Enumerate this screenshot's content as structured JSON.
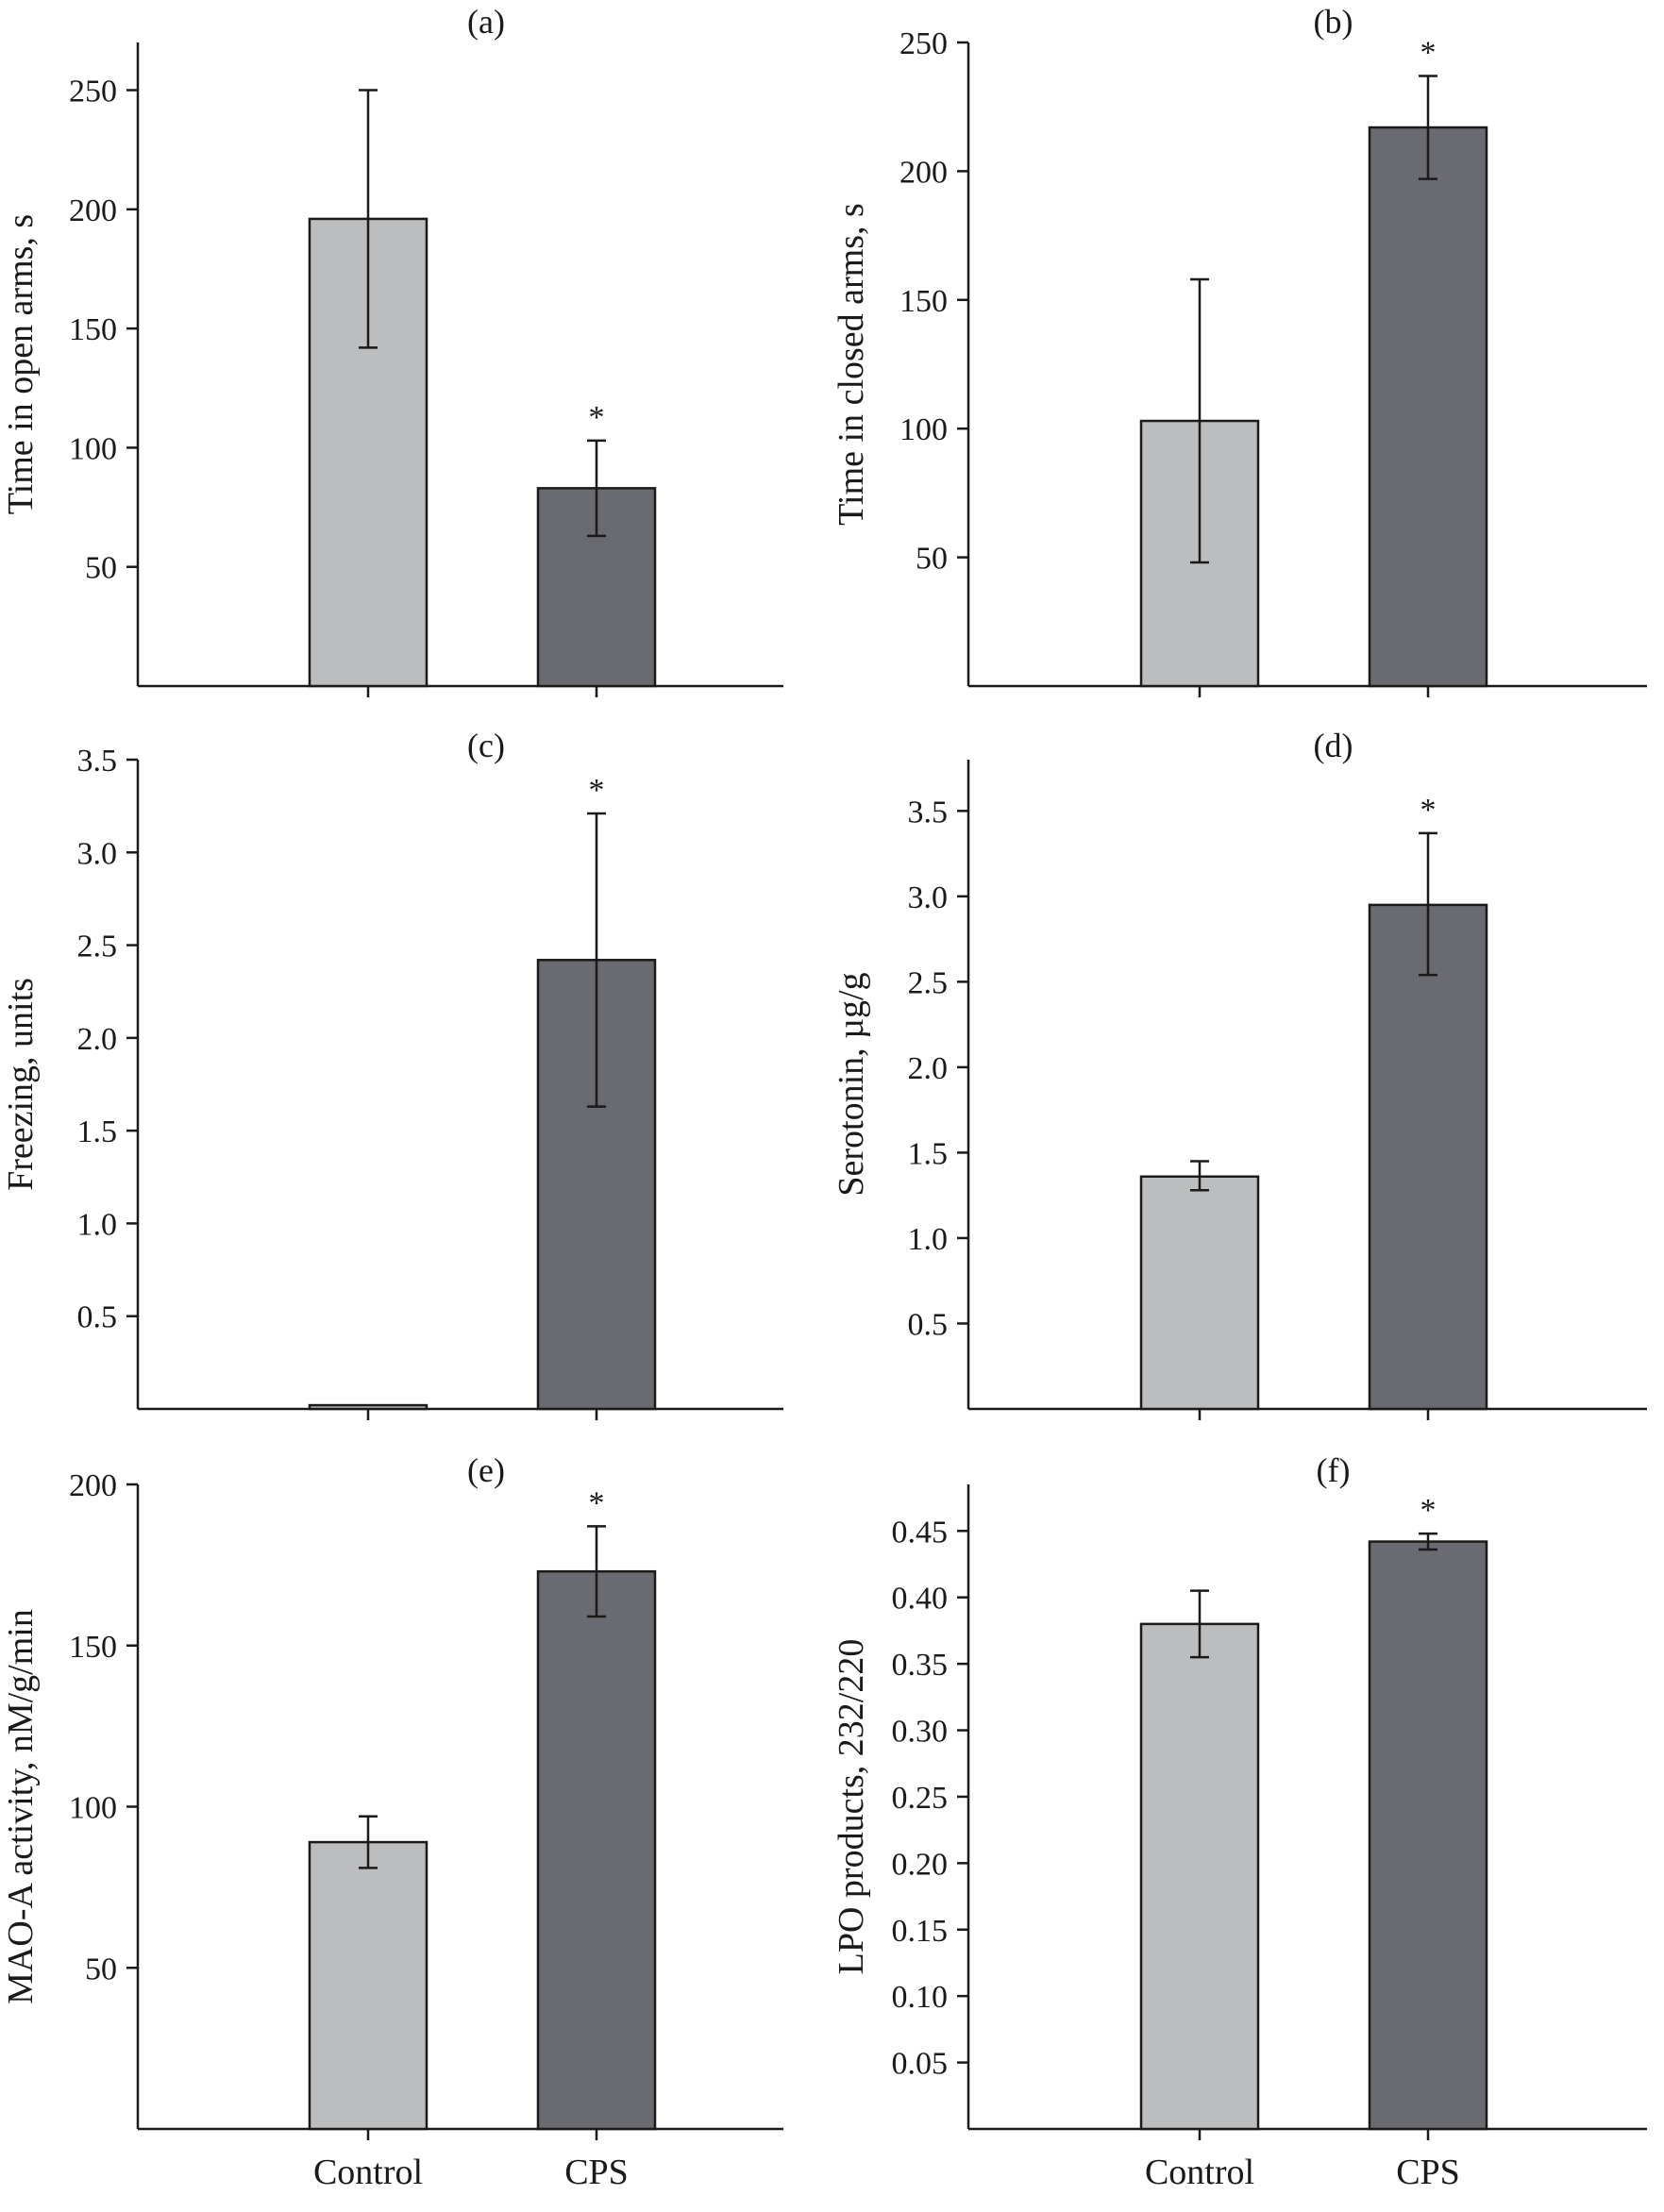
{
  "colors": {
    "control": "#bcbdbf",
    "cps": "#6a6b70",
    "ink": "#1a1a1a"
  },
  "chart_data": [
    {
      "type": "bar",
      "panel_label": "(a)",
      "ylabel": "Time in open arms, s",
      "ylim": [
        0,
        270
      ],
      "yticks": [
        50,
        100,
        150,
        200,
        250
      ],
      "ytick_labels": [
        "50",
        "100",
        "150",
        "200",
        "250"
      ],
      "categories": [
        "Control",
        "CPS"
      ],
      "values": [
        196,
        83
      ],
      "error_low": [
        142,
        63
      ],
      "error_high": [
        250,
        103
      ],
      "significance": [
        "",
        "*"
      ],
      "show_xtick_labels": false
    },
    {
      "type": "bar",
      "panel_label": "(b)",
      "ylabel": "Time in closed arms, s",
      "ylim": [
        0,
        250
      ],
      "yticks": [
        50,
        100,
        150,
        200,
        250
      ],
      "ytick_labels": [
        "50",
        "100",
        "150",
        "200",
        "250"
      ],
      "categories": [
        "Control",
        "CPS"
      ],
      "values": [
        103,
        217
      ],
      "error_low": [
        48,
        197
      ],
      "error_high": [
        158,
        237
      ],
      "significance": [
        "",
        "*"
      ],
      "show_xtick_labels": false
    },
    {
      "type": "bar",
      "panel_label": "(c)",
      "ylabel": "Freezing, units",
      "ylim": [
        0,
        3.5
      ],
      "yticks": [
        0.5,
        1.0,
        1.5,
        2.0,
        2.5,
        3.0,
        3.5
      ],
      "ytick_labels": [
        "0.5",
        "1.0",
        "1.5",
        "2.0",
        "2.5",
        "3.0",
        "3.5"
      ],
      "categories": [
        "Control",
        "CPS"
      ],
      "values": [
        0.02,
        2.42
      ],
      "error_low": [
        0.02,
        1.63
      ],
      "error_high": [
        0.02,
        3.21
      ],
      "significance": [
        "",
        "*"
      ],
      "show_xtick_labels": false
    },
    {
      "type": "bar",
      "panel_label": "(d)",
      "ylabel": "Serotonin, µg/g",
      "ylim": [
        0,
        3.8
      ],
      "yticks": [
        0.5,
        1.0,
        1.5,
        2.0,
        2.5,
        3.0,
        3.5
      ],
      "ytick_labels": [
        "0.5",
        "1.0",
        "1.5",
        "2.0",
        "2.5",
        "3.0",
        "3.5"
      ],
      "categories": [
        "Control",
        "CPS"
      ],
      "values": [
        1.36,
        2.95
      ],
      "error_low": [
        1.28,
        2.54
      ],
      "error_high": [
        1.45,
        3.37
      ],
      "significance": [
        "",
        "*"
      ],
      "show_xtick_labels": false
    },
    {
      "type": "bar",
      "panel_label": "(e)",
      "ylabel": "MAO-A activity, nM/g/min",
      "ylim": [
        0,
        200
      ],
      "yticks": [
        50,
        100,
        150,
        200
      ],
      "ytick_labels": [
        "50",
        "100",
        "150",
        "200"
      ],
      "categories": [
        "Control",
        "CPS"
      ],
      "values": [
        89,
        173
      ],
      "error_low": [
        81,
        159
      ],
      "error_high": [
        97,
        187
      ],
      "significance": [
        "",
        "*"
      ],
      "show_xtick_labels": true
    },
    {
      "type": "bar",
      "panel_label": "(f)",
      "ylabel": "LPO products, 232/220",
      "ylim": [
        0,
        0.485
      ],
      "yticks": [
        0.05,
        0.1,
        0.15,
        0.2,
        0.25,
        0.3,
        0.35,
        0.4,
        0.45
      ],
      "ytick_labels": [
        "0.05",
        "0.10",
        "0.15",
        "0.20",
        "0.25",
        "0.30",
        "0.35",
        "0.40",
        "0.45"
      ],
      "categories": [
        "Control",
        "CPS"
      ],
      "values": [
        0.38,
        0.442
      ],
      "error_low": [
        0.355,
        0.436
      ],
      "error_high": [
        0.405,
        0.448
      ],
      "significance": [
        "",
        "*"
      ],
      "show_xtick_labels": true
    }
  ]
}
